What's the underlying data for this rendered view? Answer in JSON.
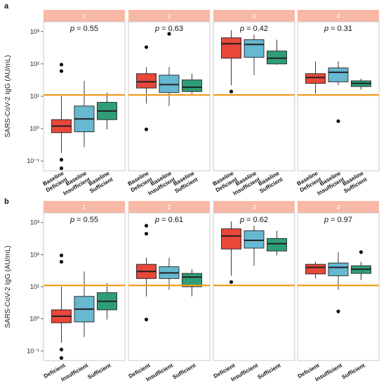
{
  "chart_data": [
    {
      "panel_label": "a",
      "type": "boxplot",
      "ylabel": "SARS-CoV-2 IgG (AU/mL)",
      "yscale": "log",
      "ylim": [
        0.05,
        2000
      ],
      "y_ticks": [
        "10⁻¹",
        "10⁰",
        "10¹",
        "10²",
        "10³"
      ],
      "threshold": 11,
      "categories": [
        "Baseline Deficient",
        "Baseline Insufficient",
        "Baseline Sufficient"
      ],
      "facets": [
        {
          "strip": "1",
          "p_label": "p",
          "p_value": "= 0.55",
          "boxes": [
            {
              "min": 0.18,
              "q1": 0.75,
              "median": 1.2,
              "q3": 1.9,
              "max": 10,
              "outliers": [
                95,
                60,
                0.11,
                0.06
              ]
            },
            {
              "min": 0.27,
              "q1": 0.8,
              "median": 2.0,
              "q3": 5.0,
              "max": 30,
              "outliers": []
            },
            {
              "min": 0.95,
              "q1": 1.9,
              "median": 3.5,
              "q3": 6.5,
              "max": 13,
              "outliers": []
            }
          ]
        },
        {
          "strip": "2",
          "p_label": "p",
          "p_value": "= 0.63",
          "boxes": [
            {
              "min": 6,
              "q1": 18,
              "median": 28,
              "q3": 50,
              "max": 80,
              "outliers": [
                330,
                0.95
              ]
            },
            {
              "min": 5,
              "q1": 13,
              "median": 23,
              "q3": 45,
              "max": 80,
              "outliers": [
                850
              ]
            },
            {
              "min": 12,
              "q1": 14,
              "median": 19,
              "q3": 32,
              "max": 50,
              "outliers": []
            }
          ]
        },
        {
          "strip": "3",
          "p_label": "p",
          "p_value": "= 0.42",
          "boxes": [
            {
              "min": 22,
              "q1": 150,
              "median": 420,
              "q3": 640,
              "max": 1100,
              "outliers": [
                14
              ]
            },
            {
              "min": 45,
              "q1": 160,
              "median": 400,
              "q3": 560,
              "max": 800,
              "outliers": []
            },
            {
              "min": 95,
              "q1": 100,
              "median": 150,
              "q3": 250,
              "max": 560,
              "outliers": []
            }
          ]
        },
        {
          "strip": "4",
          "p_label": "p",
          "p_value": "= 0.31",
          "boxes": [
            {
              "min": 12,
              "q1": 25,
              "median": 38,
              "q3": 50,
              "max": 120,
              "outliers": []
            },
            {
              "min": 22,
              "q1": 28,
              "median": 55,
              "q3": 75,
              "max": 120,
              "outliers": [
                1.7
              ]
            },
            {
              "min": 16,
              "q1": 20,
              "median": 25,
              "q3": 30,
              "max": 35,
              "outliers": []
            }
          ]
        }
      ]
    },
    {
      "panel_label": "b",
      "type": "boxplot",
      "ylabel": "SARS-CoV-2 IgG (AU/mL)",
      "yscale": "log",
      "ylim": [
        0.05,
        2000
      ],
      "y_ticks": [
        "10⁻¹",
        "10⁰",
        "10¹",
        "10²",
        "10³"
      ],
      "threshold": 11,
      "categories": [
        "Deficient",
        "Insufficient",
        "Sufficient"
      ],
      "facets": [
        {
          "strip": "1",
          "p_label": "p",
          "p_value": "= 0.55",
          "boxes": [
            {
              "min": 0.18,
              "q1": 0.75,
              "median": 1.2,
              "q3": 1.9,
              "max": 10,
              "outliers": [
                95,
                60,
                0.11,
                0.06
              ]
            },
            {
              "min": 0.27,
              "q1": 0.8,
              "median": 2.0,
              "q3": 5.0,
              "max": 30,
              "outliers": []
            },
            {
              "min": 0.95,
              "q1": 1.9,
              "median": 3.5,
              "q3": 6.5,
              "max": 13,
              "outliers": []
            }
          ]
        },
        {
          "strip": "2",
          "p_label": "p",
          "p_value": "= 0.61",
          "boxes": [
            {
              "min": 5,
              "q1": 18,
              "median": 30,
              "q3": 50,
              "max": 80,
              "outliers": [
                800,
                450,
                0.95
              ]
            },
            {
              "min": 8,
              "q1": 18,
              "median": 27,
              "q3": 42,
              "max": 80,
              "outliers": []
            },
            {
              "min": 5,
              "q1": 10,
              "median": 20,
              "q3": 26,
              "max": 35,
              "outliers": []
            }
          ]
        },
        {
          "strip": "3",
          "p_label": "p",
          "p_value": "= 0.62",
          "boxes": [
            {
              "min": 22,
              "q1": 150,
              "median": 380,
              "q3": 640,
              "max": 1100,
              "outliers": [
                14
              ]
            },
            {
              "min": 45,
              "q1": 160,
              "median": 280,
              "q3": 560,
              "max": 800,
              "outliers": []
            },
            {
              "min": 95,
              "q1": 130,
              "median": 220,
              "q3": 320,
              "max": 560,
              "outliers": []
            }
          ]
        },
        {
          "strip": "4",
          "p_label": "p",
          "p_value": "= 0.97",
          "boxes": [
            {
              "min": 18,
              "q1": 25,
              "median": 40,
              "q3": 50,
              "max": 60,
              "outliers": []
            },
            {
              "min": 8,
              "q1": 22,
              "median": 40,
              "q3": 55,
              "max": 120,
              "outliers": [
                1.7
              ]
            },
            {
              "min": 16,
              "q1": 26,
              "median": 35,
              "q3": 45,
              "max": 60,
              "outliers": [
                120
              ]
            }
          ]
        }
      ]
    }
  ],
  "colors": {
    "strip": "#f7b8a5",
    "strip_text": "#ffffff",
    "panel_border": "#c8c8c8",
    "threshold": "#f39c1f",
    "groups": [
      "#e8473a",
      "#67b8d1",
      "#2e9e78"
    ],
    "outline": "#222222"
  }
}
